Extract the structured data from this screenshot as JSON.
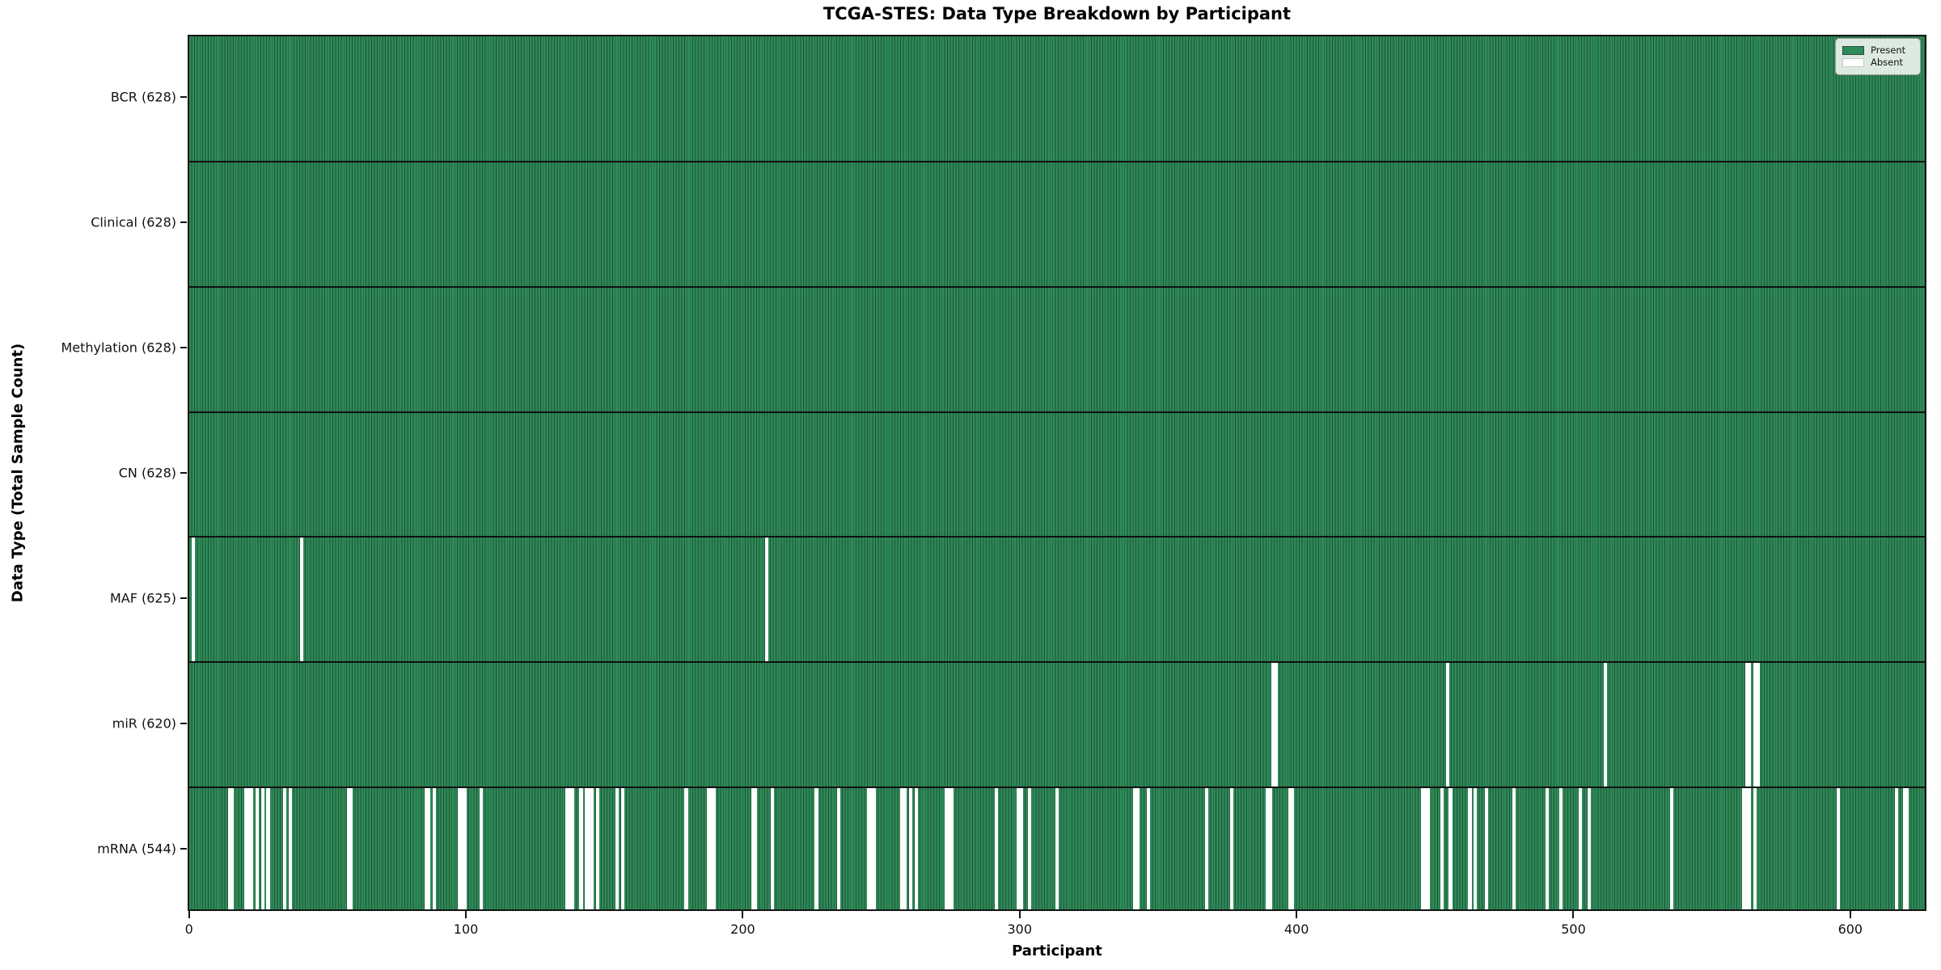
{
  "chart_data": {
    "type": "heatmap",
    "title": "TCGA-STES: Data Type Breakdown by Participant",
    "xlabel": "Participant",
    "ylabel": "Data Type (Total Sample Count)",
    "n_participants": 628,
    "x_ticks": [
      0,
      100,
      200,
      300,
      400,
      500,
      600
    ],
    "legend": [
      {
        "label": "Present",
        "color": "#2e8b57"
      },
      {
        "label": "Absent",
        "color": "#ffffff"
      }
    ],
    "colors": {
      "present_fill": "#2e8b57",
      "bar_edge": "#1f5138",
      "absent_fill": "#ffffff",
      "row_separator": "#101010",
      "spine": "#141414"
    },
    "rows": [
      {
        "label": "BCR (628)",
        "data_type": "BCR",
        "count": 628,
        "absent": []
      },
      {
        "label": "Clinical (628)",
        "data_type": "Clinical",
        "count": 628,
        "absent": []
      },
      {
        "label": "Methylation (628)",
        "data_type": "Methylation",
        "count": 628,
        "absent": []
      },
      {
        "label": "CN (628)",
        "data_type": "CN",
        "count": 628,
        "absent": []
      },
      {
        "label": "MAF (625)",
        "data_type": "MAF",
        "count": 625,
        "absent": [
          1,
          40,
          208
        ]
      },
      {
        "label": "miR (620)",
        "data_type": "miR",
        "count": 620,
        "absent": [
          391,
          392,
          454,
          511,
          562,
          563,
          565,
          566
        ]
      },
      {
        "label": "mRNA (544)",
        "data_type": "mRNA",
        "count": 544,
        "absent": [
          14,
          15,
          20,
          21,
          22,
          24,
          26,
          28,
          34,
          36,
          57,
          58,
          85,
          86,
          88,
          97,
          98,
          99,
          105,
          136,
          137,
          138,
          141,
          143,
          144,
          145,
          147,
          154,
          156,
          179,
          187,
          188,
          189,
          203,
          204,
          210,
          226,
          234,
          245,
          246,
          247,
          257,
          258,
          260,
          262,
          273,
          274,
          275,
          291,
          299,
          300,
          303,
          313,
          341,
          342,
          346,
          367,
          376,
          389,
          390,
          397,
          398,
          445,
          446,
          447,
          452,
          455,
          462,
          464,
          468,
          478,
          490,
          495,
          502,
          505,
          535,
          561,
          562,
          563,
          565,
          595,
          616,
          619,
          620
        ]
      }
    ]
  }
}
